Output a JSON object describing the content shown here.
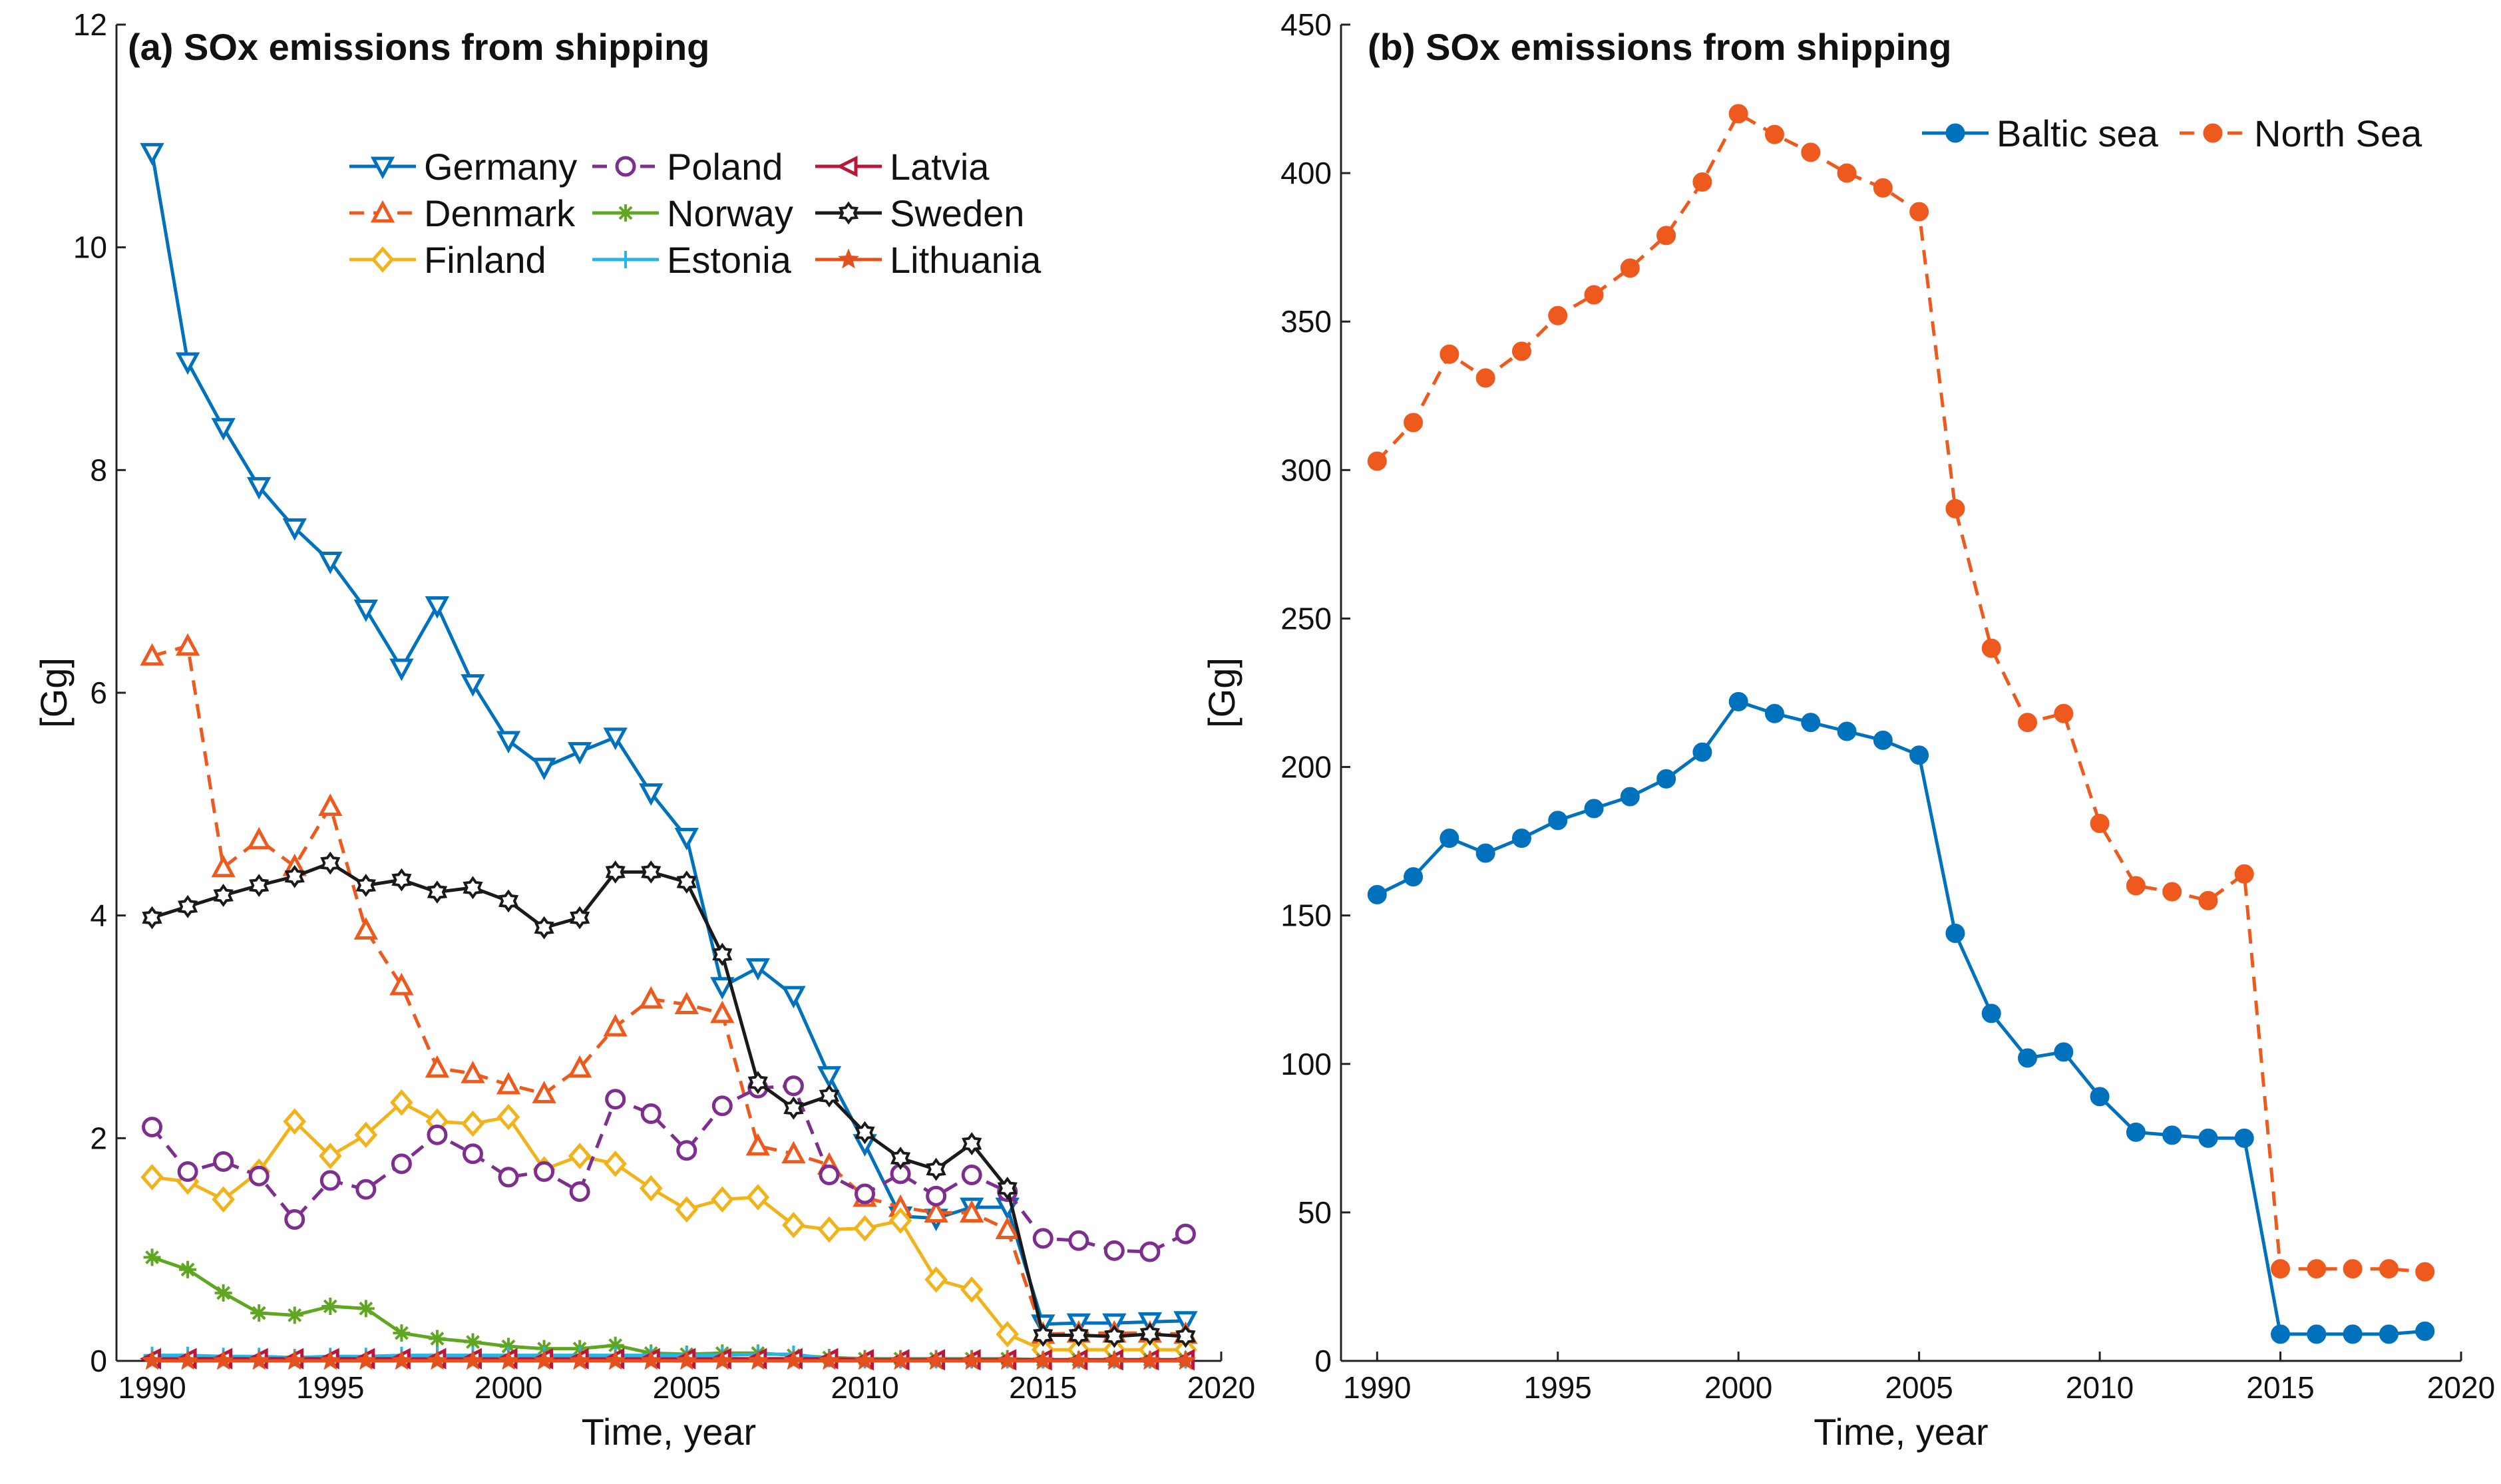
{
  "chart_data": [
    {
      "type": "line",
      "panel": "a",
      "title": "(a) SOx emissions from shipping",
      "xlabel": "Time, year",
      "ylabel": "[Gg]",
      "xlim": [
        1989,
        2020
      ],
      "ylim": [
        0,
        12
      ],
      "xticks": [
        "1990",
        "1995",
        "2000",
        "2005",
        "2010",
        "2015",
        "2020"
      ],
      "yticks": [
        "0",
        "2",
        "4",
        "6",
        "8",
        "10",
        "12"
      ],
      "legend_position": "top-center",
      "x": [
        1990,
        1991,
        1992,
        1993,
        1994,
        1995,
        1996,
        1997,
        1998,
        1999,
        2000,
        2001,
        2002,
        2003,
        2004,
        2005,
        2006,
        2007,
        2008,
        2009,
        2010,
        2011,
        2012,
        2013,
        2014,
        2015,
        2016,
        2017,
        2018,
        2019
      ],
      "series": [
        {
          "name": "Germany",
          "color": "#0072BD",
          "dash": "solid",
          "marker": "triangle-down",
          "values": [
            10.85,
            8.97,
            8.38,
            7.85,
            7.48,
            7.18,
            6.75,
            6.22,
            6.78,
            6.08,
            5.57,
            5.33,
            5.47,
            5.6,
            5.1,
            4.7,
            3.36,
            3.53,
            3.28,
            2.56,
            1.95,
            1.3,
            1.28,
            1.38,
            1.38,
            0.33,
            0.34,
            0.34,
            0.35,
            0.36
          ]
        },
        {
          "name": "Denmark",
          "color": "#EE5A1E",
          "dash": "dashed",
          "marker": "triangle-up",
          "values": [
            6.33,
            6.42,
            4.43,
            4.68,
            4.44,
            4.98,
            3.87,
            3.37,
            2.63,
            2.58,
            2.48,
            2.4,
            2.63,
            3.0,
            3.25,
            3.2,
            3.12,
            1.93,
            1.86,
            1.76,
            1.47,
            1.38,
            1.33,
            1.33,
            1.18,
            0.24,
            0.25,
            0.25,
            0.25,
            0.24
          ]
        },
        {
          "name": "Finland",
          "color": "#F2B31A",
          "dash": "solid",
          "marker": "diamond",
          "values": [
            1.65,
            1.61,
            1.45,
            1.7,
            2.15,
            1.84,
            2.03,
            2.32,
            2.15,
            2.13,
            2.19,
            1.72,
            1.84,
            1.77,
            1.55,
            1.36,
            1.45,
            1.47,
            1.22,
            1.18,
            1.19,
            1.26,
            0.73,
            0.64,
            0.24,
            0.1,
            0.1,
            0.1,
            0.1,
            0.1
          ]
        },
        {
          "name": "Poland",
          "color": "#7E2F8E",
          "dash": "dashed",
          "marker": "circle",
          "values": [
            2.1,
            1.7,
            1.79,
            1.66,
            1.27,
            1.62,
            1.54,
            1.77,
            2.03,
            1.86,
            1.65,
            1.7,
            1.52,
            2.35,
            2.22,
            1.89,
            2.29,
            2.45,
            2.47,
            1.67,
            1.5,
            1.68,
            1.48,
            1.67,
            1.52,
            1.1,
            1.08,
            0.99,
            0.98,
            1.14
          ]
        },
        {
          "name": "Norway",
          "color": "#5FA621",
          "dash": "solid",
          "marker": "asterisk",
          "values": [
            0.93,
            0.82,
            0.61,
            0.43,
            0.41,
            0.49,
            0.47,
            0.25,
            0.2,
            0.17,
            0.13,
            0.11,
            0.11,
            0.14,
            0.07,
            0.06,
            0.07,
            0.07,
            0.05,
            0.03,
            0.02,
            0.02,
            0.02,
            0.02,
            0.02,
            0.01,
            0.01,
            0.01,
            0.01,
            0.01
          ]
        },
        {
          "name": "Estonia",
          "color": "#26B5E6",
          "dash": "solid",
          "marker": "plus",
          "values": [
            0.05,
            0.05,
            0.04,
            0.04,
            0.03,
            0.04,
            0.04,
            0.05,
            0.05,
            0.05,
            0.05,
            0.05,
            0.05,
            0.05,
            0.05,
            0.05,
            0.05,
            0.06,
            0.06,
            0.02,
            0.01,
            0.01,
            0.01,
            0.01,
            0.01,
            0.01,
            0.01,
            0.01,
            0.01,
            0.01
          ]
        },
        {
          "name": "Latvia",
          "color": "#B8173B",
          "dash": "solid",
          "marker": "triangle-left",
          "values": [
            0.02,
            0.02,
            0.02,
            0.02,
            0.02,
            0.02,
            0.02,
            0.02,
            0.02,
            0.02,
            0.02,
            0.02,
            0.02,
            0.02,
            0.02,
            0.02,
            0.02,
            0.02,
            0.02,
            0.02,
            0.01,
            0.01,
            0.01,
            0.01,
            0.01,
            0.01,
            0.01,
            0.01,
            0.01,
            0.01
          ]
        },
        {
          "name": "Sweden",
          "color": "#1A1A1A",
          "dash": "solid",
          "marker": "hexagram",
          "values": [
            3.98,
            4.08,
            4.18,
            4.27,
            4.35,
            4.47,
            4.27,
            4.32,
            4.21,
            4.25,
            4.13,
            3.89,
            3.98,
            4.39,
            4.39,
            4.3,
            3.65,
            2.5,
            2.27,
            2.38,
            2.05,
            1.82,
            1.72,
            1.95,
            1.55,
            0.23,
            0.23,
            0.22,
            0.24,
            0.22
          ]
        },
        {
          "name": "Lithuania",
          "color": "#E4511F",
          "dash": "solid",
          "marker": "star",
          "values": [
            0.0,
            0.0,
            0.0,
            0.0,
            0.0,
            0.0,
            0.0,
            0.0,
            0.0,
            0.0,
            0.0,
            0.0,
            0.0,
            0.0,
            0.0,
            0.0,
            0.0,
            0.0,
            0.0,
            0.0,
            0.0,
            0.0,
            0.0,
            0.0,
            0.0,
            0.0,
            0.0,
            0.0,
            0.0,
            0.0
          ]
        }
      ]
    },
    {
      "type": "line",
      "panel": "b",
      "title": "(b) SOx emissions from shipping",
      "xlabel": "Time, year",
      "ylabel": "[Gg]",
      "xlim": [
        1989,
        2020
      ],
      "ylim": [
        0,
        450
      ],
      "xticks": [
        "1990",
        "1995",
        "2000",
        "2005",
        "2010",
        "2015",
        "2020"
      ],
      "yticks": [
        "0",
        "50",
        "100",
        "150",
        "200",
        "250",
        "300",
        "350",
        "400",
        "450"
      ],
      "legend_position": "top-right",
      "x": [
        1990,
        1991,
        1992,
        1993,
        1994,
        1995,
        1996,
        1997,
        1998,
        1999,
        2000,
        2001,
        2002,
        2003,
        2004,
        2005,
        2006,
        2007,
        2008,
        2009,
        2010,
        2011,
        2012,
        2013,
        2014,
        2015,
        2016,
        2017,
        2018,
        2019
      ],
      "series": [
        {
          "name": "Baltic sea",
          "color": "#0072BD",
          "dash": "solid",
          "marker": "filled-circle",
          "values": [
            157,
            163,
            176,
            171,
            176,
            182,
            186,
            190,
            196,
            205,
            222,
            218,
            215,
            212,
            209,
            204,
            144,
            117,
            102,
            104,
            89,
            77,
            76,
            75,
            75,
            9,
            9,
            9,
            9,
            10
          ]
        },
        {
          "name": "North Sea",
          "color": "#EE5A1E",
          "dash": "dashed",
          "marker": "filled-circle",
          "values": [
            303,
            316,
            339,
            331,
            340,
            352,
            359,
            368,
            379,
            397,
            420,
            413,
            407,
            400,
            395,
            387,
            287,
            240,
            215,
            218,
            181,
            160,
            158,
            155,
            164,
            31,
            31,
            31,
            31,
            30
          ]
        }
      ]
    }
  ]
}
